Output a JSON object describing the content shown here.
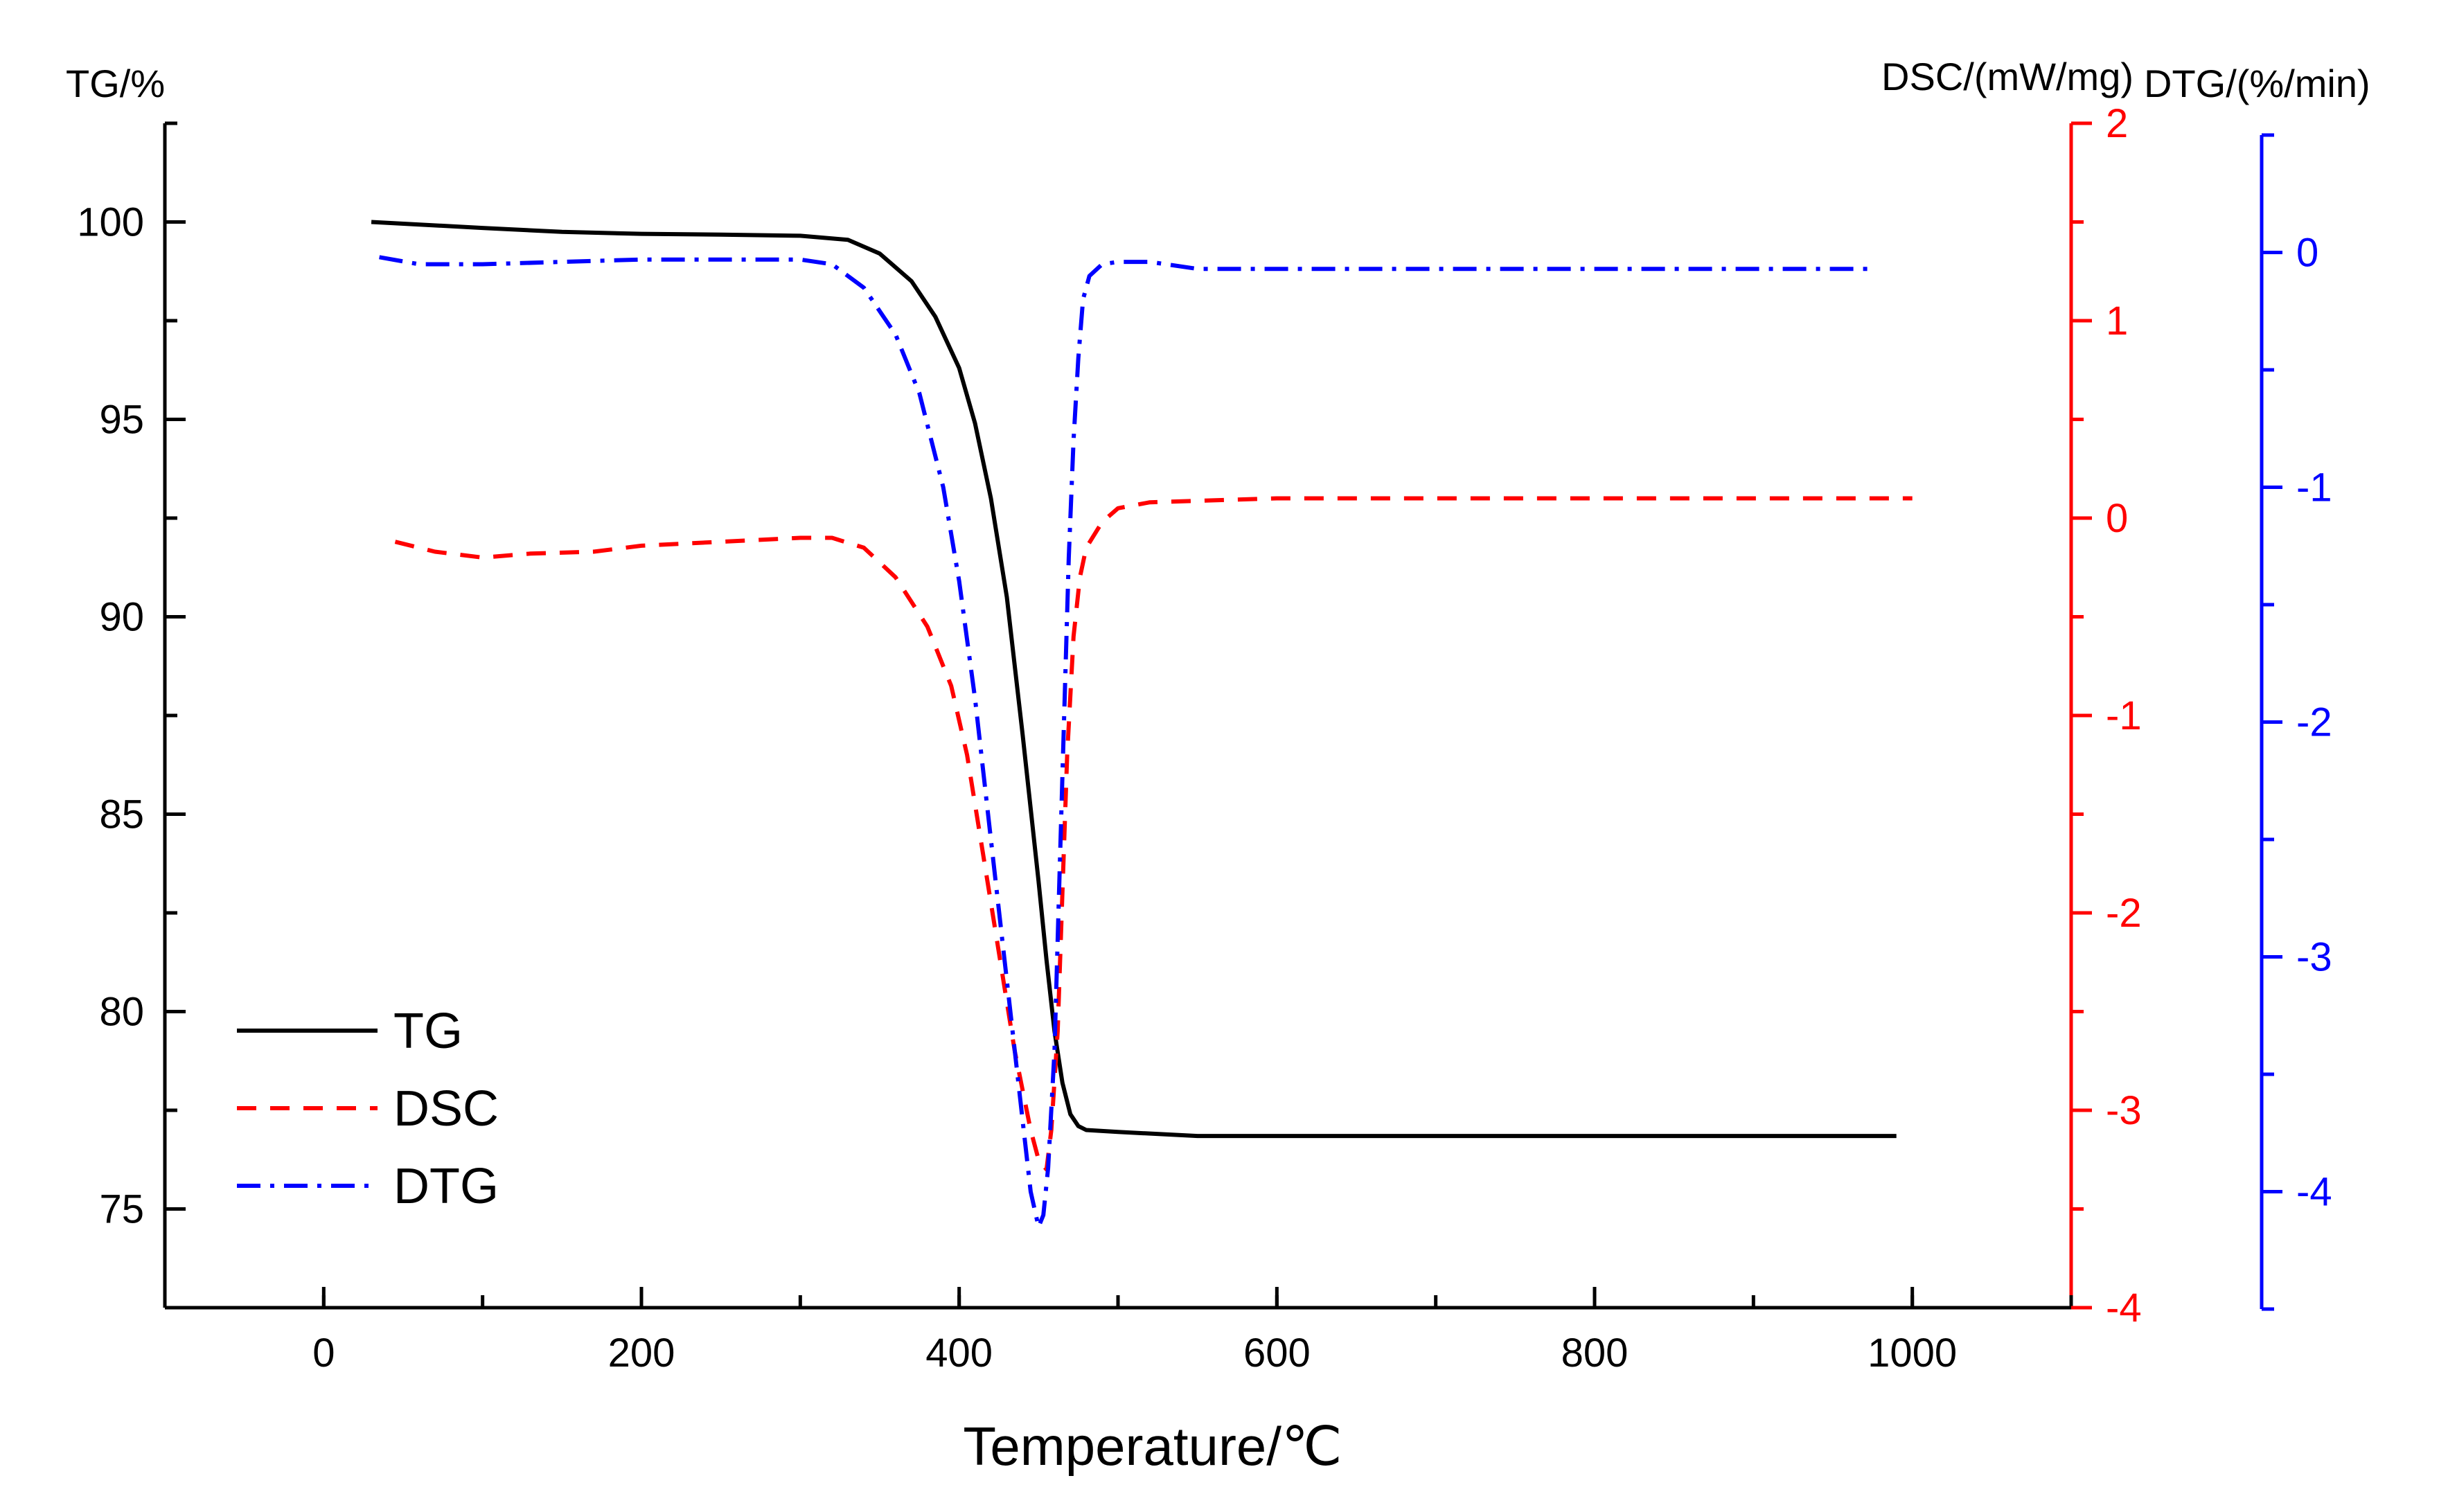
{
  "chart_data": {
    "type": "line",
    "xlabel": "Temperature/℃",
    "xlim": [
      -100,
      1100
    ],
    "xticks": [
      0,
      200,
      400,
      600,
      800,
      1000
    ],
    "y_axes": {
      "left": {
        "label": "TG/%",
        "ylim": [
          72.5,
          102.5
        ],
        "ticks": [
          75,
          80,
          85,
          90,
          95,
          100
        ],
        "color": "#000000"
      },
      "right1": {
        "label": "DSC/(mW/mg)",
        "ylim": [
          -4,
          2
        ],
        "ticks": [
          -4,
          -3,
          -2,
          -1,
          0,
          1,
          2
        ],
        "color": "#ff0000"
      },
      "right2": {
        "label": "DTG/(%/min)",
        "ylim": [
          -4.5,
          0.5
        ],
        "ticks": [
          -4,
          -3,
          -2,
          -1,
          0
        ],
        "color": "#0000ff"
      }
    },
    "legend": {
      "position": "bottom-left"
    },
    "series": [
      {
        "name": "TG",
        "axis": "left",
        "color": "#000000",
        "dash": "solid",
        "x": [
          30,
          100,
          150,
          200,
          250,
          300,
          330,
          350,
          370,
          385,
          400,
          410,
          420,
          430,
          440,
          450,
          455,
          460,
          465,
          470,
          475,
          480,
          500,
          550,
          600,
          700,
          800,
          900,
          990
        ],
        "y": [
          100,
          99.85,
          99.75,
          99.7,
          99.68,
          99.65,
          99.55,
          99.2,
          98.5,
          97.6,
          96.3,
          94.9,
          93.0,
          90.5,
          87.0,
          83.3,
          81.3,
          79.5,
          78.2,
          77.4,
          77.1,
          77.0,
          76.95,
          76.85,
          76.85,
          76.85,
          76.85,
          76.85,
          76.85
        ]
      },
      {
        "name": "DSC",
        "axis": "right1",
        "color": "#ff0000",
        "dash": "dashed",
        "x": [
          45,
          70,
          100,
          130,
          170,
          200,
          250,
          300,
          320,
          340,
          360,
          380,
          395,
          405,
          415,
          425,
          435,
          445,
          450,
          455,
          458,
          462,
          465,
          468,
          472,
          476,
          480,
          490,
          500,
          520,
          600,
          700,
          800,
          900,
          1000
        ],
        "y": [
          -0.12,
          -0.17,
          -0.2,
          -0.18,
          -0.17,
          -0.14,
          -0.12,
          -0.1,
          -0.1,
          -0.15,
          -0.3,
          -0.55,
          -0.85,
          -1.2,
          -1.7,
          -2.2,
          -2.7,
          -3.1,
          -3.25,
          -3.3,
          -3.1,
          -2.6,
          -1.9,
          -1.2,
          -0.6,
          -0.3,
          -0.15,
          -0.02,
          0.05,
          0.08,
          0.1,
          0.1,
          0.1,
          0.1,
          0.1
        ]
      },
      {
        "name": "DTG",
        "axis": "right2",
        "color": "#0000ff",
        "dash": "dashdot",
        "x": [
          35,
          60,
          100,
          150,
          200,
          250,
          300,
          320,
          340,
          360,
          375,
          390,
          400,
          410,
          420,
          430,
          440,
          445,
          450,
          453,
          456,
          460,
          463,
          466,
          469,
          472,
          475,
          478,
          482,
          490,
          500,
          520,
          550,
          600,
          700,
          800,
          900,
          975
        ],
        "y": [
          -0.02,
          -0.05,
          -0.05,
          -0.04,
          -0.03,
          -0.03,
          -0.03,
          -0.05,
          -0.15,
          -0.35,
          -0.6,
          -1.0,
          -1.4,
          -1.9,
          -2.5,
          -3.1,
          -3.7,
          -4.0,
          -4.15,
          -4.1,
          -3.9,
          -3.4,
          -2.7,
          -2.0,
          -1.3,
          -0.8,
          -0.45,
          -0.2,
          -0.1,
          -0.05,
          -0.04,
          -0.04,
          -0.07,
          -0.07,
          -0.07,
          -0.07,
          -0.07,
          -0.07
        ]
      }
    ]
  }
}
